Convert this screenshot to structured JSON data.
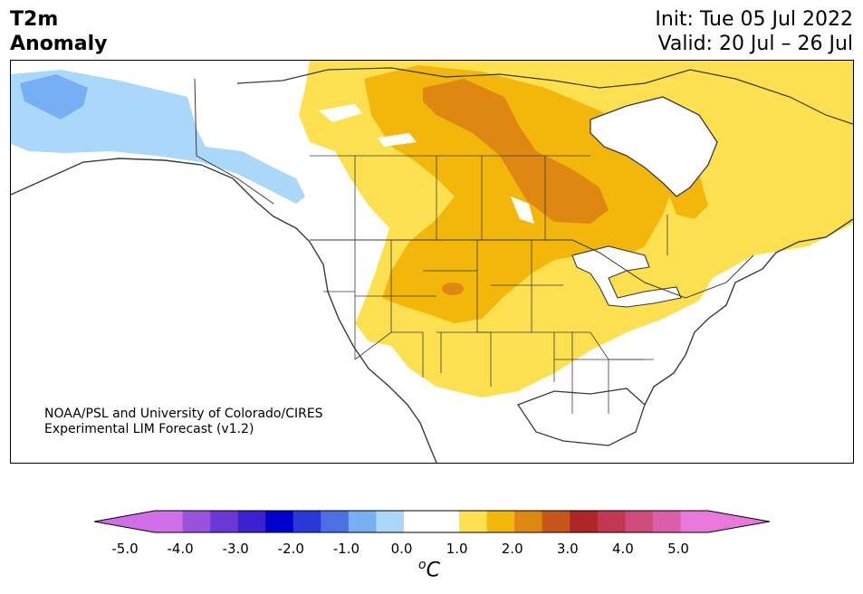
{
  "title": {
    "line1": "T2m",
    "line2": "Anomaly"
  },
  "dates": {
    "init": "Init: Tue 05 Jul 2022",
    "valid": "Valid: 20 Jul – 26 Jul"
  },
  "credit": {
    "line1": "NOAA/PSL and University of Colorado/CIRES",
    "line2": "Experimental LIM Forecast (v1.2)"
  },
  "colorbar": {
    "unit_prefix": "o",
    "unit_symbol": "C",
    "ticks": [
      "-5.0",
      "-4.0",
      "-3.0",
      "-2.0",
      "-1.0",
      "0.0",
      "1.0",
      "2.0",
      "3.0",
      "4.0",
      "5.0"
    ],
    "colors": [
      "#d16fe9",
      "#9a52dc",
      "#6a38d6",
      "#3a22cf",
      "#0000cc",
      "#2838d9",
      "#4a70e4",
      "#76b0f3",
      "#aad8fa",
      "#ffffff",
      "#ffffff",
      "#fde050",
      "#f2b70a",
      "#de8711",
      "#c55518",
      "#ad2525",
      "#c23650",
      "#d04b7c",
      "#da5ea8",
      "#e878dc"
    ],
    "under_color": "#d16fe9",
    "over_color": "#e878dc"
  },
  "anomaly_colors": {
    "light_blue": "#aad8fa",
    "mid_blue": "#76b0f3",
    "pale_yellow": "#fde050",
    "gold": "#f2b70a",
    "orange": "#de8711"
  }
}
